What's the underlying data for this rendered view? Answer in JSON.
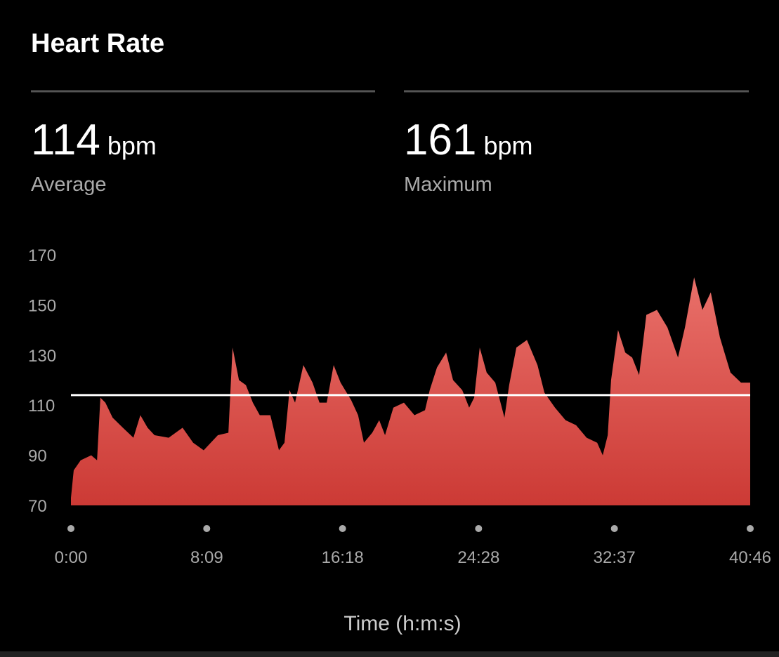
{
  "chart_data": {
    "type": "area",
    "title": "Heart Rate",
    "xlabel": "Time (h:m:s)",
    "x": [
      0,
      10,
      35,
      73,
      94,
      106,
      124,
      150,
      187,
      225,
      250,
      276,
      301,
      352,
      402,
      440,
      478,
      529,
      567,
      582,
      605,
      630,
      655,
      680,
      718,
      749,
      769,
      787,
      807,
      837,
      870,
      895,
      921,
      946,
      971,
      1009,
      1034,
      1055,
      1085,
      1110,
      1131,
      1161,
      1199,
      1237,
      1275,
      1292,
      1318,
      1351,
      1376,
      1409,
      1434,
      1452,
      1472,
      1497,
      1528,
      1561,
      1578,
      1604,
      1642,
      1680,
      1705,
      1743,
      1781,
      1819,
      1857,
      1895,
      1915,
      1933,
      1945,
      1970,
      1996,
      2021,
      2046,
      2072,
      2110,
      2148,
      2186,
      2211,
      2244,
      2274,
      2304,
      2337,
      2375,
      2413,
      2446
    ],
    "values": [
      73,
      84,
      88,
      90,
      88,
      113,
      111,
      105,
      101,
      97,
      106,
      101,
      98,
      97,
      101,
      95,
      92,
      98,
      99,
      133,
      120,
      118,
      111,
      106,
      106,
      92,
      95,
      116,
      111,
      126,
      119,
      111,
      111,
      126,
      119,
      112,
      106,
      95,
      99,
      104,
      98,
      109,
      111,
      106,
      108,
      116,
      125,
      131,
      120,
      116,
      109,
      113,
      133,
      123,
      119,
      105,
      118,
      133,
      136,
      126,
      115,
      109,
      104,
      102,
      97,
      95,
      90,
      98,
      120,
      140,
      131,
      129,
      122,
      146,
      148,
      141,
      129,
      141,
      161,
      148,
      155,
      137,
      123,
      119,
      119
    ],
    "color_top": "#e9706a",
    "color_bottom": "#cc3a35",
    "xlim": [
      0,
      2446
    ],
    "xticks": [
      {
        "value": 0,
        "label": "0:00"
      },
      {
        "value": 489,
        "label": "8:09"
      },
      {
        "value": 978,
        "label": "16:18"
      },
      {
        "value": 1468,
        "label": "24:28"
      },
      {
        "value": 1957,
        "label": "32:37"
      },
      {
        "value": 2446,
        "label": "40:46"
      }
    ],
    "ylim": [
      70,
      170
    ],
    "yticks": [
      70,
      90,
      110,
      130,
      150,
      170
    ]
  },
  "stats": [
    {
      "value": 114,
      "unit": "bpm",
      "label": "Average"
    },
    {
      "value": 161,
      "unit": "bpm",
      "label": "Maximum"
    }
  ]
}
